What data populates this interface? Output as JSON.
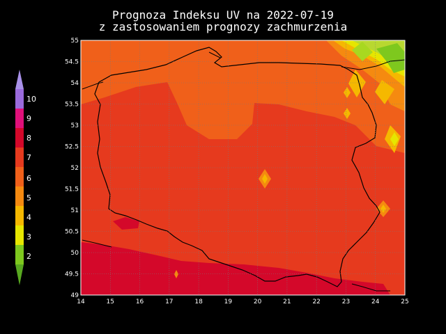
{
  "title_line1": "Prognoza Indeksu UV na 2022-07-19",
  "title_line2": "z zastosowaniem prognozy zachmurzenia",
  "map": {
    "x_ticks": [
      "14",
      "15",
      "16",
      "17",
      "18",
      "19",
      "20",
      "21",
      "22",
      "23",
      "24",
      "25"
    ],
    "y_ticks": [
      "55",
      "54.5",
      "54",
      "53.5",
      "53",
      "52.5",
      "52",
      "51.5",
      "51",
      "50.5",
      "50",
      "49.5",
      "49"
    ],
    "grid": "dotted"
  },
  "legend": {
    "labels": [
      "10",
      "9",
      "8",
      "7",
      "6",
      "5",
      "4",
      "3",
      "2"
    ],
    "colors": {
      "uv_10": "#9a6bdc",
      "uv_9": "#e0107a",
      "uv_8": "#d4082a",
      "uv_7": "#e63a1e",
      "uv_6": "#f0601a",
      "uv_5": "#f58a10",
      "uv_4": "#f5b800",
      "uv_3": "#e6e600",
      "uv_2": "#7ec81e"
    }
  }
}
